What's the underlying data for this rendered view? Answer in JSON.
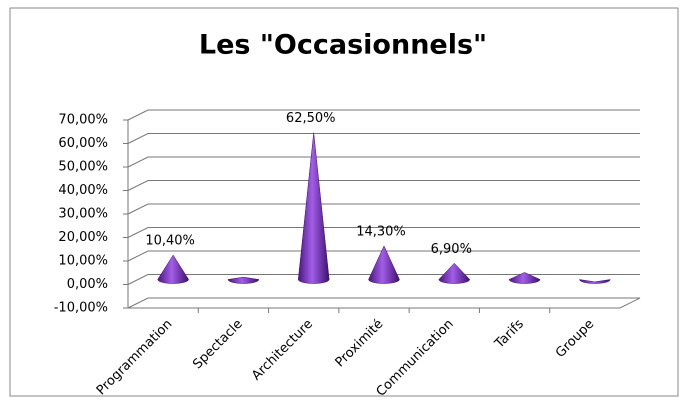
{
  "chart_data": {
    "type": "cone3d",
    "title": "Les \"Occasionnels\"",
    "categories": [
      "Programmation",
      "Spectacle",
      "Architecture",
      "Proximité",
      "Communication",
      "Tarifs",
      "Groupe"
    ],
    "values": [
      10.4,
      1,
      62.5,
      14.3,
      6.9,
      3,
      -1
    ],
    "value_labels": [
      "10,40%",
      null,
      "62,50%",
      "14,30%",
      "6,90%",
      null,
      null
    ],
    "color": "#7b2fbe",
    "ylim": [
      -10,
      70
    ],
    "yticks": [
      {
        "value": -10,
        "label": "-10,00%"
      },
      {
        "value": 0,
        "label": "0,00%"
      },
      {
        "value": 10,
        "label": "10,00%"
      },
      {
        "value": 20,
        "label": "20,00%"
      },
      {
        "value": 30,
        "label": "30,00%"
      },
      {
        "value": 40,
        "label": "40,00%"
      },
      {
        "value": 50,
        "label": "50,00%"
      },
      {
        "value": 60,
        "label": "60,00%"
      },
      {
        "value": 70,
        "label": "70,00%"
      }
    ],
    "grid": true
  }
}
